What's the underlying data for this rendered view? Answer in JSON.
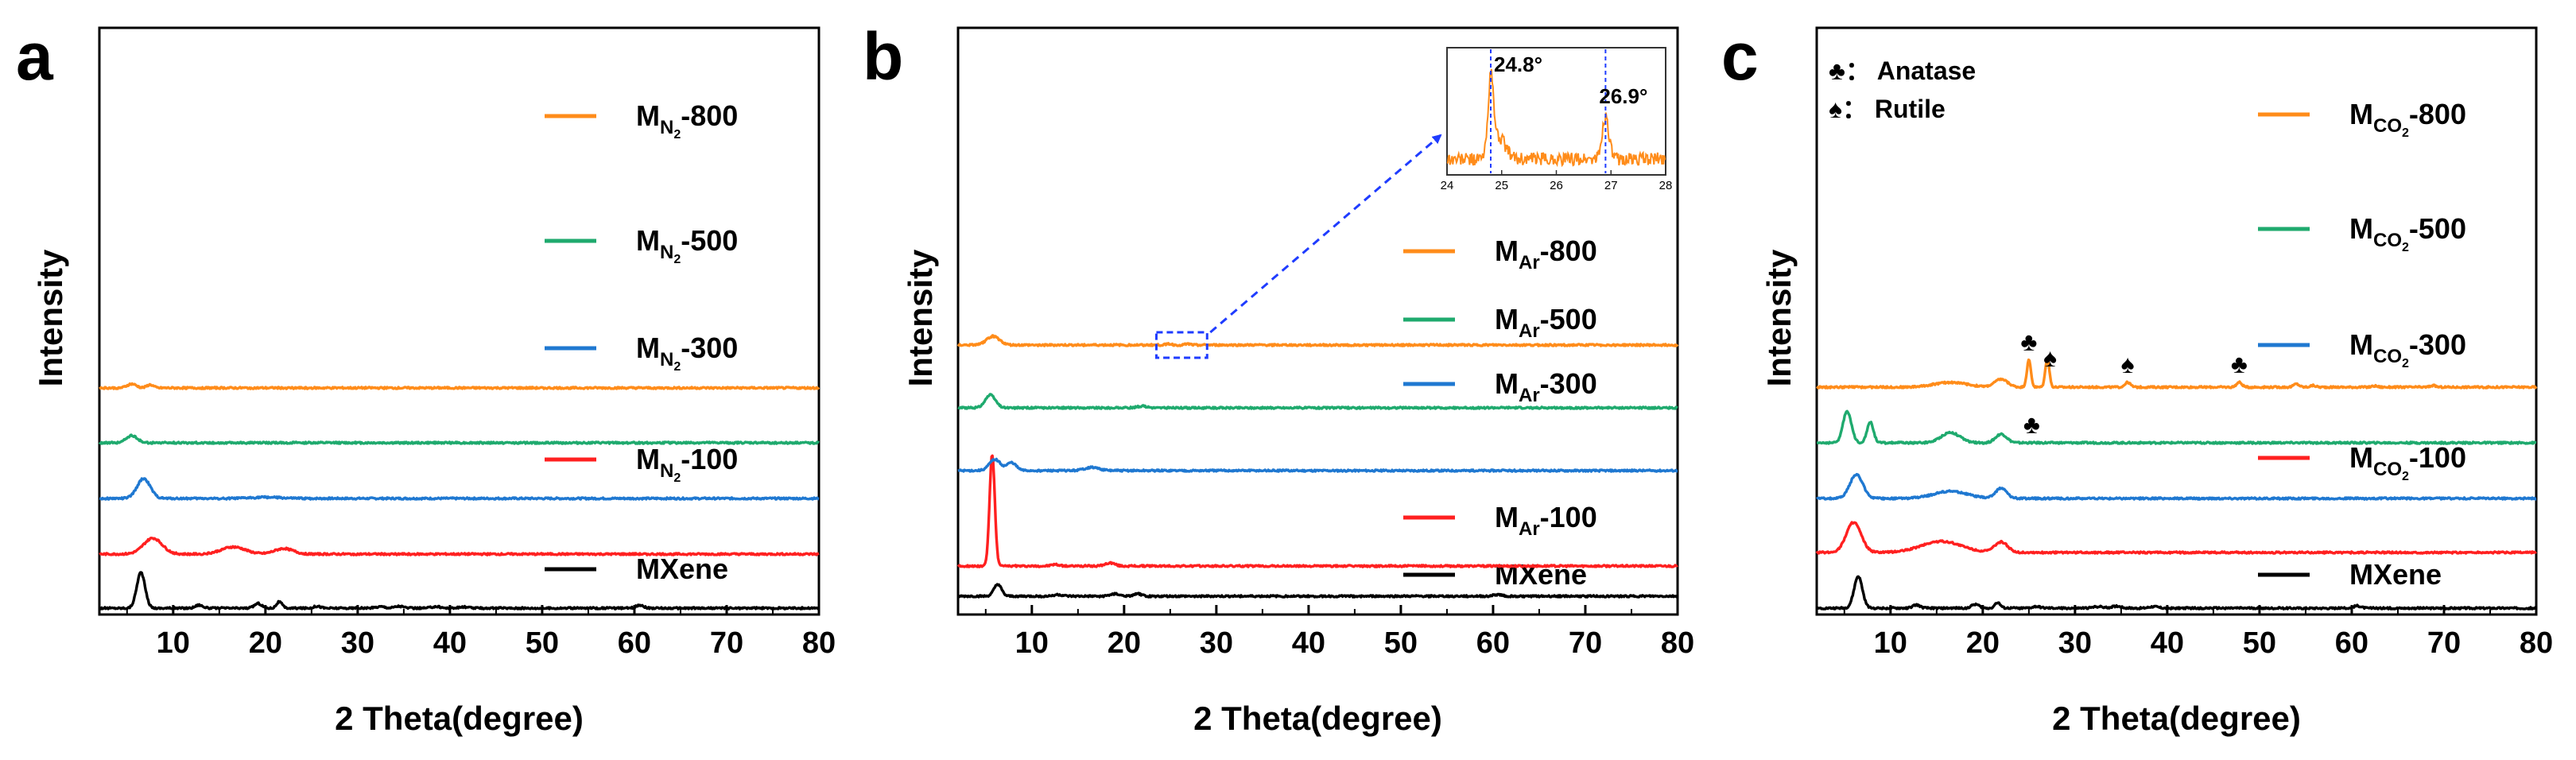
{
  "colors": {
    "c800": "#ff8c1a",
    "c500": "#1faa6e",
    "c300": "#1f78d1",
    "c100": "#ff2020",
    "mxene": "#000000",
    "arrow": "#1f3cff"
  },
  "chart_data": [
    {
      "panel": "a",
      "type": "line",
      "xlabel": "2 Theta(degree)",
      "ylabel": "Intensity",
      "xlim": [
        2,
        80
      ],
      "xticks": [
        10,
        20,
        30,
        40,
        50,
        60,
        70,
        80
      ],
      "series": [
        {
          "name": "MXene",
          "label_main": "MXene",
          "label_sub": "",
          "label_suffix": "",
          "color_key": "mxene",
          "baseline": 0,
          "peaks": [
            [
              6.5,
              45,
              0.45
            ],
            [
              12.8,
              4,
              0.4
            ],
            [
              19.2,
              6,
              0.4
            ],
            [
              21.5,
              8,
              0.3
            ],
            [
              25.6,
              2.5,
              0.4
            ],
            [
              32.5,
              2,
              0.5
            ],
            [
              34.5,
              2.5,
              0.5
            ],
            [
              38.5,
              2,
              0.5
            ],
            [
              41.5,
              1.5,
              0.5
            ],
            [
              60.6,
              4,
              0.4
            ]
          ]
        },
        {
          "name": "MN2-100",
          "label_main": "M",
          "label_sub": "N",
          "label_sub2": "2",
          "label_suffix": "-100",
          "color_key": "c100",
          "baseline": 68,
          "peaks": [
            [
              7.8,
              20,
              1.0
            ],
            [
              16.5,
              9,
              1.3
            ],
            [
              22.0,
              7,
              1.0
            ]
          ]
        },
        {
          "name": "MN2-300",
          "label_main": "M",
          "label_sub": "N",
          "label_sub2": "2",
          "label_suffix": "-300",
          "color_key": "c300",
          "baseline": 138,
          "peaks": [
            [
              6.8,
              25,
              0.7
            ],
            [
              20.0,
              1.5,
              1.5
            ]
          ]
        },
        {
          "name": "MN2-500",
          "label_main": "M",
          "label_sub": "N",
          "label_sub2": "2",
          "label_suffix": "-500",
          "color_key": "c500",
          "baseline": 208,
          "peaks": [
            [
              5.5,
              9,
              0.6
            ]
          ]
        },
        {
          "name": "MN2-800",
          "label_main": "M",
          "label_sub": "N",
          "label_sub2": "2",
          "label_suffix": "-800",
          "color_key": "c800",
          "baseline": 277,
          "peaks": [
            [
              5.5,
              5,
              0.5
            ],
            [
              7.5,
              4,
              0.35
            ]
          ]
        }
      ]
    },
    {
      "panel": "b",
      "type": "line",
      "xlabel": "2 Theta(degree)",
      "ylabel": "Intensity",
      "xlim": [
        2,
        80
      ],
      "xticks": [
        10,
        20,
        30,
        40,
        50,
        60,
        70,
        80
      ],
      "series": [
        {
          "name": "MXene",
          "label_main": "MXene",
          "label_sub": "",
          "label_suffix": "",
          "color_key": "mxene",
          "baseline": 0,
          "peaks": [
            [
              6.3,
              15,
              0.4
            ],
            [
              12.8,
              2,
              0.5
            ],
            [
              19.0,
              3,
              0.5
            ],
            [
              21.5,
              3,
              0.4
            ],
            [
              60.5,
              2,
              0.5
            ]
          ]
        },
        {
          "name": "MAr-100",
          "label_main": "M",
          "label_sub": "Ar",
          "label_suffix": "-100",
          "color_key": "c100",
          "baseline": 38,
          "peaks": [
            [
              5.7,
              140,
              0.28
            ],
            [
              12.5,
              2,
              0.4
            ],
            [
              18.5,
              4,
              0.5
            ]
          ]
        },
        {
          "name": "MAr-300",
          "label_main": "M",
          "label_sub": "Ar",
          "label_suffix": "-300",
          "color_key": "c300",
          "baseline": 158,
          "peaks": [
            [
              6.0,
              14,
              0.6
            ],
            [
              7.8,
              10,
              0.5
            ],
            [
              16.5,
              4,
              0.8
            ]
          ]
        },
        {
          "name": "MAr-500",
          "label_main": "M",
          "label_sub": "Ar",
          "label_suffix": "-500",
          "color_key": "c500",
          "baseline": 237,
          "peaks": [
            [
              5.5,
              16,
              0.55
            ],
            [
              22.0,
              2,
              0.6
            ]
          ]
        },
        {
          "name": "MAr-800",
          "label_main": "M",
          "label_sub": "Ar",
          "label_suffix": "-800",
          "color_key": "c800",
          "baseline": 316,
          "peaks": [
            [
              5.8,
              11,
              0.7
            ],
            [
              24.8,
              1.5,
              0.3
            ],
            [
              26.9,
              1.2,
              0.3
            ]
          ]
        }
      ],
      "inset": {
        "xlim": [
          24,
          28
        ],
        "xticks": [
          24,
          25,
          26,
          27,
          28
        ],
        "annotations": [
          {
            "x": 24.8,
            "text": "24.8°"
          },
          {
            "x": 26.9,
            "text": "26.9°"
          }
        ],
        "zoom_box_x": [
          23.5,
          29
        ]
      }
    },
    {
      "panel": "c",
      "type": "line",
      "xlabel": "2 Theta(degree)",
      "ylabel": "Intensity",
      "xlim": [
        2,
        80
      ],
      "xticks": [
        10,
        20,
        30,
        40,
        50,
        60,
        70,
        80
      ],
      "phase_legend": [
        {
          "symbol": "♣",
          "text": "： Anatase"
        },
        {
          "symbol": "♠",
          "text": "： Rutile"
        }
      ],
      "peak_markers": [
        {
          "series": "MCO2-800",
          "x": 25.0,
          "symbol": "♣"
        },
        {
          "series": "MCO2-800",
          "x": 27.3,
          "symbol": "♠"
        },
        {
          "series": "MCO2-800",
          "x": 35.7,
          "symbol": "♠"
        },
        {
          "series": "MCO2-800",
          "x": 47.8,
          "symbol": "♣"
        },
        {
          "series": "MCO2-500",
          "x": 25.3,
          "symbol": "♣"
        }
      ],
      "series": [
        {
          "name": "MXene",
          "label_main": "MXene",
          "label_sub": "",
          "label_suffix": "",
          "color_key": "mxene",
          "baseline": 0,
          "peaks": [
            [
              6.5,
              40,
              0.45
            ],
            [
              12.8,
              4,
              0.4
            ],
            [
              19.2,
              5,
              0.4
            ],
            [
              21.6,
              7,
              0.3
            ],
            [
              25.8,
              2,
              0.4
            ],
            [
              32.5,
              2,
              0.5
            ],
            [
              34.5,
              2.5,
              0.5
            ],
            [
              38.5,
              2,
              0.5
            ],
            [
              60.6,
              3,
              0.4
            ]
          ]
        },
        {
          "name": "MCO2-100",
          "label_main": "M",
          "label_sub": "CO",
          "label_sub2": "2",
          "label_suffix": "-100",
          "color_key": "c100",
          "baseline": 70,
          "peaks": [
            [
              6.0,
              38,
              0.8
            ],
            [
              15.5,
              14,
              2.2
            ],
            [
              22.0,
              13,
              0.7
            ]
          ]
        },
        {
          "name": "MCO2-300",
          "label_main": "M",
          "label_sub": "CO",
          "label_sub2": "2",
          "label_suffix": "-300",
          "color_key": "c300",
          "baseline": 138,
          "peaks": [
            [
              6.3,
              30,
              0.7
            ],
            [
              16.5,
              9,
              1.8
            ],
            [
              22.0,
              13,
              0.6
            ]
          ]
        },
        {
          "name": "MCO2-500",
          "label_main": "M",
          "label_sub": "CO",
          "label_sub2": "2",
          "label_suffix": "-500",
          "color_key": "c500",
          "baseline": 208,
          "peaks": [
            [
              5.3,
              40,
              0.45
            ],
            [
              7.8,
              26,
              0.35
            ],
            [
              16.5,
              13,
              1.0
            ],
            [
              22.0,
              11,
              0.6
            ]
          ]
        },
        {
          "name": "MCO2-800",
          "label_main": "M",
          "label_sub": "CO",
          "label_sub2": "2",
          "label_suffix": "-800",
          "color_key": "c800",
          "baseline": 278,
          "peaks": [
            [
              16.5,
              6,
              1.8
            ],
            [
              22.0,
              10,
              0.7
            ],
            [
              25.0,
              34,
              0.22
            ],
            [
              27.0,
              36,
              0.22
            ],
            [
              35.7,
              6,
              0.3
            ],
            [
              47.8,
              6,
              0.3
            ],
            [
              54.0,
              4,
              0.3
            ],
            [
              55.8,
              2,
              0.3
            ],
            [
              62.5,
              1.5,
              0.3
            ],
            [
              68.8,
              2,
              0.3
            ]
          ]
        }
      ]
    }
  ]
}
